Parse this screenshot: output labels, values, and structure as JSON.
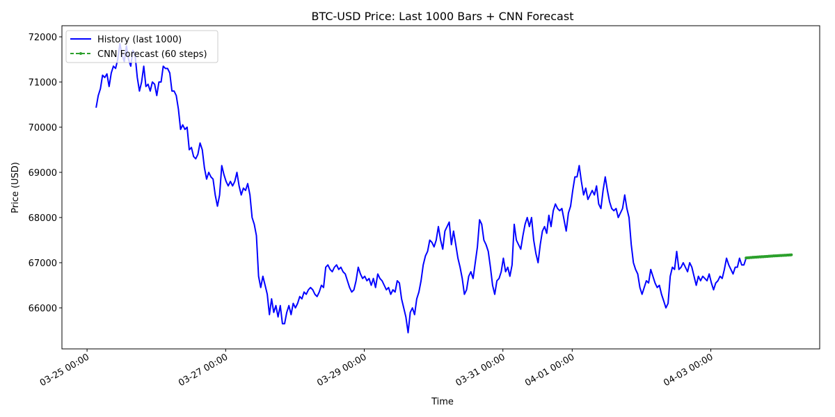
{
  "chart_data": {
    "type": "line",
    "title": "BTC-USD Price: Last 1000 Bars + CNN Forecast",
    "xlabel": "Time",
    "ylabel": "Price (USD)",
    "x_units": "hours since 03-25 00:00",
    "xlim": [
      -8.7,
      253.7
    ],
    "ylim": [
      65092,
      72246
    ],
    "grid": false,
    "legend_position": "top-left",
    "x_ticks": [
      {
        "value": 0,
        "label": "03-25 00:00"
      },
      {
        "value": 48,
        "label": "03-27 00:00"
      },
      {
        "value": 96,
        "label": "03-29 00:00"
      },
      {
        "value": 144,
        "label": "03-31 00:00"
      },
      {
        "value": 168,
        "label": "04-01 00:00"
      },
      {
        "value": 216,
        "label": "04-03 00:00"
      }
    ],
    "y_ticks": [
      66000,
      67000,
      68000,
      69000,
      70000,
      71000,
      72000
    ],
    "y_tick_labels": [
      "66000",
      "67000",
      "68000",
      "69000",
      "70000",
      "71000",
      "72000"
    ],
    "series": [
      {
        "name": "History (last 1000)",
        "color": "#0000ff",
        "style": "solid",
        "x_start": 3.13,
        "x_end": 228.2,
        "values": [
          70430,
          70700,
          70850,
          71150,
          71100,
          71180,
          70900,
          71200,
          71350,
          71300,
          71500,
          71850,
          71600,
          71450,
          71800,
          71500,
          71350,
          71700,
          71600,
          71100,
          70800,
          71000,
          71350,
          70900,
          70950,
          70800,
          71000,
          70950,
          70700,
          71000,
          71000,
          71350,
          71300,
          71300,
          71200,
          70800,
          70800,
          70700,
          70400,
          69950,
          70050,
          69950,
          70000,
          69500,
          69550,
          69350,
          69300,
          69400,
          69650,
          69500,
          69100,
          68850,
          69000,
          68900,
          68850,
          68500,
          68250,
          68500,
          69150,
          68950,
          68800,
          68700,
          68800,
          68700,
          68800,
          69000,
          68700,
          68500,
          68650,
          68600,
          68750,
          68500,
          68000,
          67850,
          67600,
          66700,
          66450,
          66700,
          66500,
          66300,
          65850,
          66200,
          65900,
          66050,
          65800,
          66050,
          65650,
          65650,
          65900,
          66050,
          65850,
          66100,
          66000,
          66100,
          66250,
          66200,
          66350,
          66300,
          66400,
          66450,
          66400,
          66300,
          66250,
          66350,
          66500,
          66450,
          66900,
          66950,
          66850,
          66800,
          66900,
          66950,
          66850,
          66900,
          66800,
          66750,
          66600,
          66450,
          66350,
          66400,
          66600,
          66900,
          66750,
          66650,
          66700,
          66600,
          66650,
          66500,
          66650,
          66450,
          66750,
          66650,
          66600,
          66500,
          66400,
          66450,
          66300,
          66400,
          66350,
          66600,
          66550,
          66200,
          66000,
          65800,
          65450,
          65900,
          66000,
          65850,
          66200,
          66350,
          66600,
          66950,
          67150,
          67250,
          67500,
          67450,
          67350,
          67500,
          67800,
          67500,
          67300,
          67700,
          67800,
          67900,
          67400,
          67700,
          67400,
          67100,
          66900,
          66650,
          66300,
          66400,
          66700,
          66800,
          66650,
          67000,
          67350,
          67950,
          67850,
          67500,
          67400,
          67250,
          66900,
          66500,
          66300,
          66600,
          66650,
          66800,
          67100,
          66800,
          66900,
          66700,
          66950,
          67850,
          67500,
          67400,
          67300,
          67600,
          67850,
          68000,
          67800,
          68000,
          67500,
          67200,
          67000,
          67400,
          67700,
          67800,
          67650,
          68050,
          67800,
          68150,
          68300,
          68200,
          68150,
          68200,
          67950,
          67700,
          68100,
          68250,
          68600,
          68900,
          68900,
          69150,
          68800,
          68500,
          68650,
          68400,
          68500,
          68600,
          68500,
          68700,
          68300,
          68200,
          68600,
          68900,
          68600,
          68350,
          68200,
          68150,
          68200,
          68000,
          68100,
          68200,
          68500,
          68200,
          68000,
          67400,
          67000,
          66850,
          66750,
          66450,
          66300,
          66450,
          66600,
          66550,
          66850,
          66700,
          66550,
          66450,
          66500,
          66300,
          66150,
          66000,
          66100,
          66700,
          66900,
          66850,
          67250,
          66850,
          66900,
          67000,
          66900,
          66800,
          67000,
          66900,
          66700,
          66500,
          66700,
          66600,
          66700,
          66650,
          66600,
          66750,
          66550,
          66400,
          66550,
          66600,
          66700,
          66650,
          66850,
          67100,
          66950,
          66850,
          66750,
          66900,
          66900,
          67100,
          66950,
          66950,
          67100
        ]
      },
      {
        "name": "CNN Forecast (60 steps)",
        "color": "#2ca02c",
        "style": "dashed-dot-marker",
        "x_start": 228.2,
        "x_end": 243.9,
        "values": [
          67105,
          67108,
          67110,
          67112,
          67110,
          67114,
          67116,
          67113,
          67118,
          67120,
          67117,
          67121,
          67123,
          67120,
          67125,
          67127,
          67124,
          67128,
          67130,
          67127,
          67132,
          67134,
          67131,
          67135,
          67137,
          67135,
          67139,
          67141,
          67138,
          67142,
          67144,
          67142,
          67146,
          67147,
          67145,
          67149,
          67151,
          67149,
          67152,
          67154,
          67152,
          67156,
          67157,
          67155,
          67159,
          67160,
          67158,
          67162,
          67163,
          67161,
          67165,
          67166,
          67164,
          67168,
          67169,
          67168,
          67171,
          67172,
          67171,
          67175
        ]
      }
    ]
  }
}
